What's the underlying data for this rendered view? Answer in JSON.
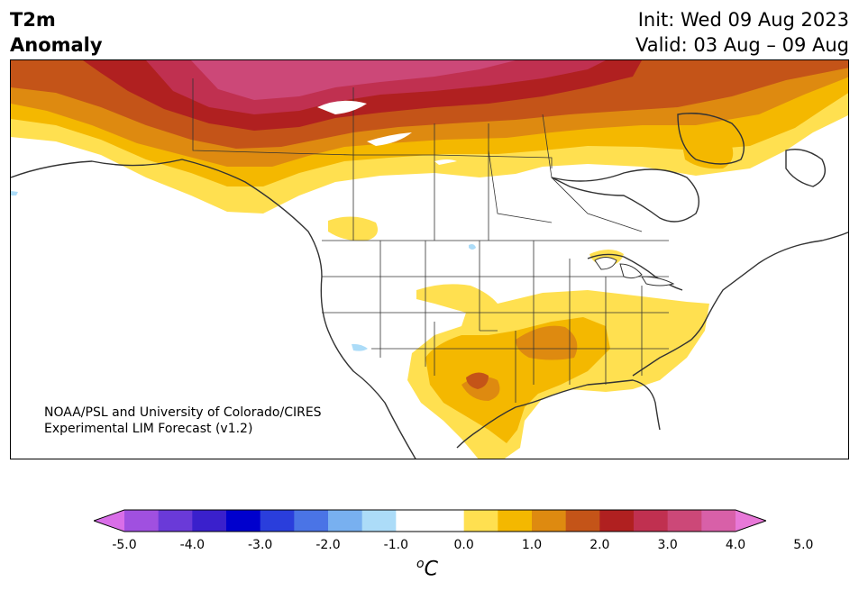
{
  "header": {
    "title_line1": "T2m",
    "title_line2": "Anomaly",
    "init_label": "Init: Wed 09 Aug 2023",
    "valid_label": "Valid: 03 Aug – 09 Aug"
  },
  "map": {
    "credit_line1": "NOAA/PSL and University of Colorado/CIRES",
    "credit_line2": "Experimental LIM Forecast (v1.2)"
  },
  "colorbar": {
    "unit_base": "C",
    "unit_sup": "o",
    "ticks": [
      "-5.0",
      "-4.0",
      "-3.0",
      "-2.0",
      "-1.0",
      "0.0",
      "1.0",
      "2.0",
      "3.0",
      "4.0",
      "5.0"
    ],
    "colors": [
      "#d96ee8",
      "#a050e0",
      "#6a3ad8",
      "#3a20cc",
      "#0000cd",
      "#2a3edc",
      "#4a74e6",
      "#78b0f0",
      "#acdcf8",
      "#ffffff",
      "#ffffff",
      "#ffe050",
      "#f4b800",
      "#de8a10",
      "#c45418",
      "#b02020",
      "#c03050",
      "#cc4878",
      "#d860a8",
      "#e878d8"
    ]
  }
}
